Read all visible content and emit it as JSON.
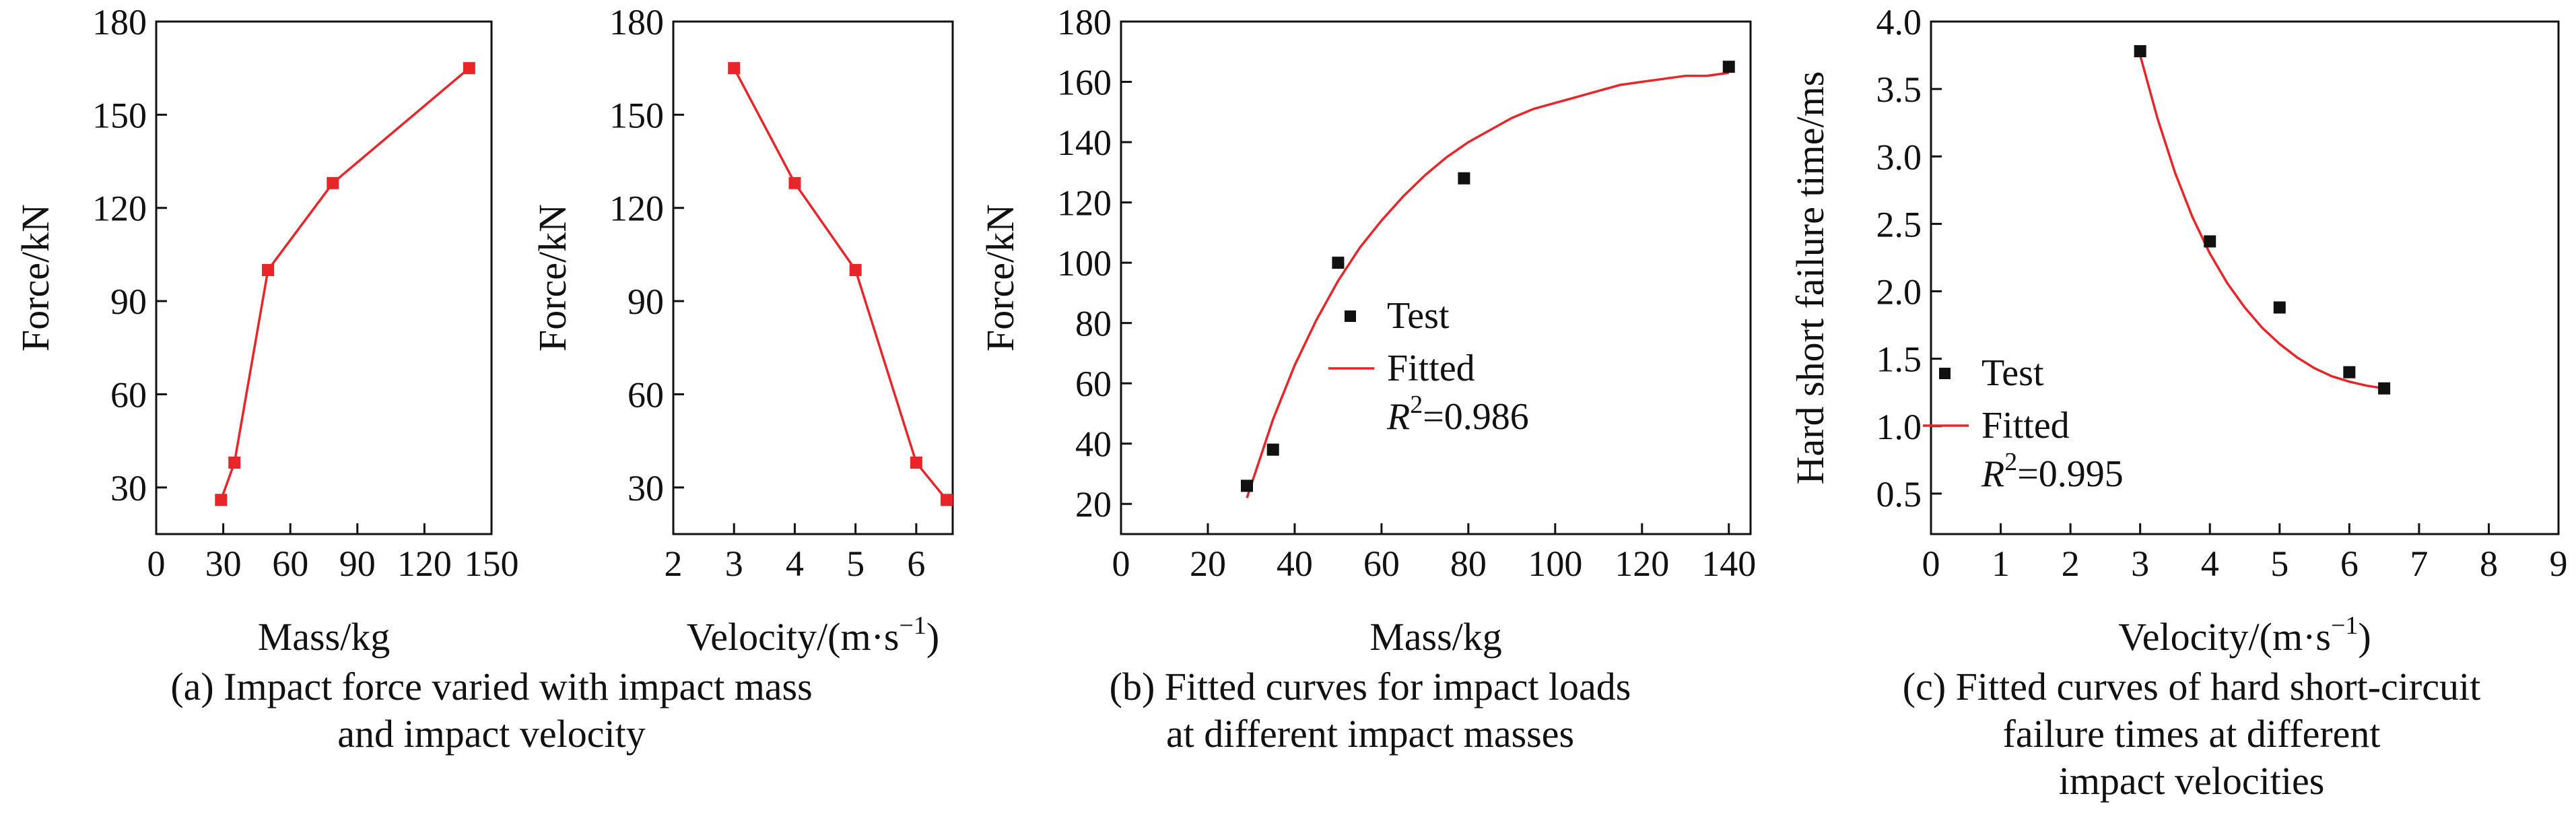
{
  "chart_data": [
    {
      "id": "a1",
      "type": "line",
      "xlabel": "Mass/kg",
      "ylabel": "Force/kN",
      "xlim": [
        0,
        150
      ],
      "ylim": [
        15,
        180
      ],
      "xticks": [
        0,
        30,
        60,
        90,
        120,
        150
      ],
      "yticks": [
        30,
        60,
        90,
        120,
        150,
        180
      ],
      "grid": false,
      "color": "#e8262a",
      "series": [
        {
          "marker": "square",
          "x": [
            29,
            35,
            50,
            79,
            140
          ],
          "y": [
            26,
            38,
            100,
            128,
            165
          ]
        }
      ]
    },
    {
      "id": "a2",
      "type": "line",
      "xlabel": "Velocity/(m·s",
      "xlabel_sup": "−1",
      "xlabel_end": ")",
      "ylabel": "Force/kN",
      "xlim": [
        2,
        6.6
      ],
      "ylim": [
        15,
        180
      ],
      "xticks": [
        2,
        3,
        4,
        5,
        6
      ],
      "yticks": [
        30,
        60,
        90,
        120,
        150,
        180
      ],
      "grid": false,
      "color": "#e8262a",
      "series": [
        {
          "marker": "square",
          "x": [
            3,
            4,
            5,
            6,
            6.5
          ],
          "y": [
            165,
            128,
            100,
            38,
            26
          ]
        }
      ]
    },
    {
      "id": "b",
      "type": "scatter",
      "xlabel": "Mass/kg",
      "ylabel": "Force/kN",
      "xlim": [
        0,
        145
      ],
      "ylim": [
        10,
        180
      ],
      "xticks": [
        0,
        20,
        40,
        60,
        80,
        100,
        120,
        140
      ],
      "yticks": [
        20,
        40,
        60,
        80,
        100,
        120,
        140,
        160,
        180
      ],
      "grid": false,
      "legend_position": "center",
      "points": {
        "name": "Test",
        "x": [
          29,
          35,
          50,
          79,
          140
        ],
        "y": [
          26,
          38,
          100,
          128,
          165
        ]
      },
      "fit": {
        "name": "Fitted",
        "r2_label": "R",
        "r2_sup": "2",
        "r2_value": "=0.986",
        "color": "#e8262a",
        "x": [
          29,
          35,
          40,
          45,
          50,
          55,
          60,
          65,
          70,
          75,
          80,
          85,
          90,
          95,
          100,
          105,
          110,
          115,
          120,
          125,
          130,
          135,
          140
        ],
        "y": [
          22,
          48,
          66,
          81,
          94,
          105,
          114,
          122,
          129,
          135,
          140,
          144,
          148,
          151,
          153,
          155,
          157,
          159,
          160,
          161,
          162,
          162,
          163
        ]
      }
    },
    {
      "id": "c",
      "type": "scatter",
      "xlabel": "Velocity/(m·s",
      "xlabel_sup": "−1",
      "xlabel_end": ")",
      "ylabel": "Hard short failure time/ms",
      "xlim": [
        0,
        9
      ],
      "ylim": [
        0.2,
        4.0
      ],
      "xticks": [
        0,
        1,
        2,
        3,
        4,
        5,
        6,
        7,
        8,
        9
      ],
      "yticks": [
        0.5,
        1.0,
        1.5,
        2.0,
        2.5,
        3.0,
        3.5,
        4.0
      ],
      "ytick_labels": [
        "0.5",
        "1.0",
        "1.5",
        "2.0",
        "2.5",
        "3.0",
        "3.5",
        "4.0"
      ],
      "grid": false,
      "legend_position": "left",
      "points": {
        "name": "Test",
        "x": [
          3,
          4,
          5,
          6,
          6.5
        ],
        "y": [
          3.78,
          2.37,
          1.88,
          1.4,
          1.28
        ]
      },
      "fit": {
        "name": "Fitted",
        "r2_label": "R",
        "r2_sup": "2",
        "r2_value": "=0.995",
        "color": "#e8262a",
        "x": [
          3.0,
          3.25,
          3.5,
          3.75,
          4.0,
          4.25,
          4.5,
          4.75,
          5.0,
          5.25,
          5.5,
          5.75,
          6.0,
          6.25,
          6.5
        ],
        "y": [
          3.75,
          3.28,
          2.88,
          2.55,
          2.28,
          2.06,
          1.88,
          1.73,
          1.61,
          1.51,
          1.43,
          1.37,
          1.33,
          1.3,
          1.28
        ]
      }
    }
  ],
  "captions": {
    "a": [
      "(a) Impact force varied with impact mass",
      "and impact velocity"
    ],
    "b": [
      "(b) Fitted curves for impact loads",
      "at different impact masses"
    ],
    "c": [
      "(c) Fitted curves of hard short-circuit",
      "failure times at different",
      "impact velocities"
    ]
  }
}
